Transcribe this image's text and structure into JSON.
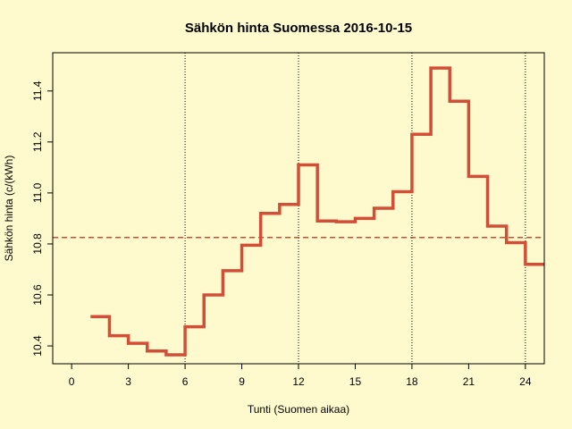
{
  "chart_data": {
    "type": "line",
    "title": "Sähkön hinta Suomessa 2016-10-15",
    "xlabel": "Tunti (Suomen aikaa)",
    "ylabel": "Sähkön hinta (c/(kWh)",
    "xlim": [
      -1,
      25
    ],
    "ylim": [
      10.33,
      11.55
    ],
    "x_ticks": [
      0,
      3,
      6,
      9,
      12,
      15,
      18,
      21,
      24
    ],
    "y_ticks": [
      10.4,
      10.6,
      10.8,
      11.0,
      11.2,
      11.4
    ],
    "y_tick_labels": [
      "10.4",
      "10.6",
      "10.8",
      "11.0",
      "11.2",
      "11.4"
    ],
    "vertical_reference_lines": [
      6,
      12,
      18,
      24
    ],
    "average_line": 10.825,
    "series": [
      {
        "step": "post",
        "color": "#d24e36",
        "x": [
          1,
          2,
          3,
          4,
          5,
          6,
          7,
          8,
          9,
          10,
          11,
          12,
          13,
          14,
          15,
          16,
          17,
          18,
          19,
          20,
          21,
          22,
          23,
          24,
          25
        ],
        "values": [
          10.515,
          10.44,
          10.41,
          10.38,
          10.365,
          10.475,
          10.6,
          10.695,
          10.795,
          10.92,
          10.955,
          11.11,
          10.89,
          10.887,
          10.9,
          10.94,
          11.005,
          11.23,
          11.49,
          11.36,
          11.065,
          10.87,
          10.805,
          10.72,
          10.72
        ]
      }
    ],
    "colors": {
      "series": "#d24e36",
      "average": "#d24e36",
      "background": "#fffacd",
      "reference_lines": "#000000"
    }
  }
}
